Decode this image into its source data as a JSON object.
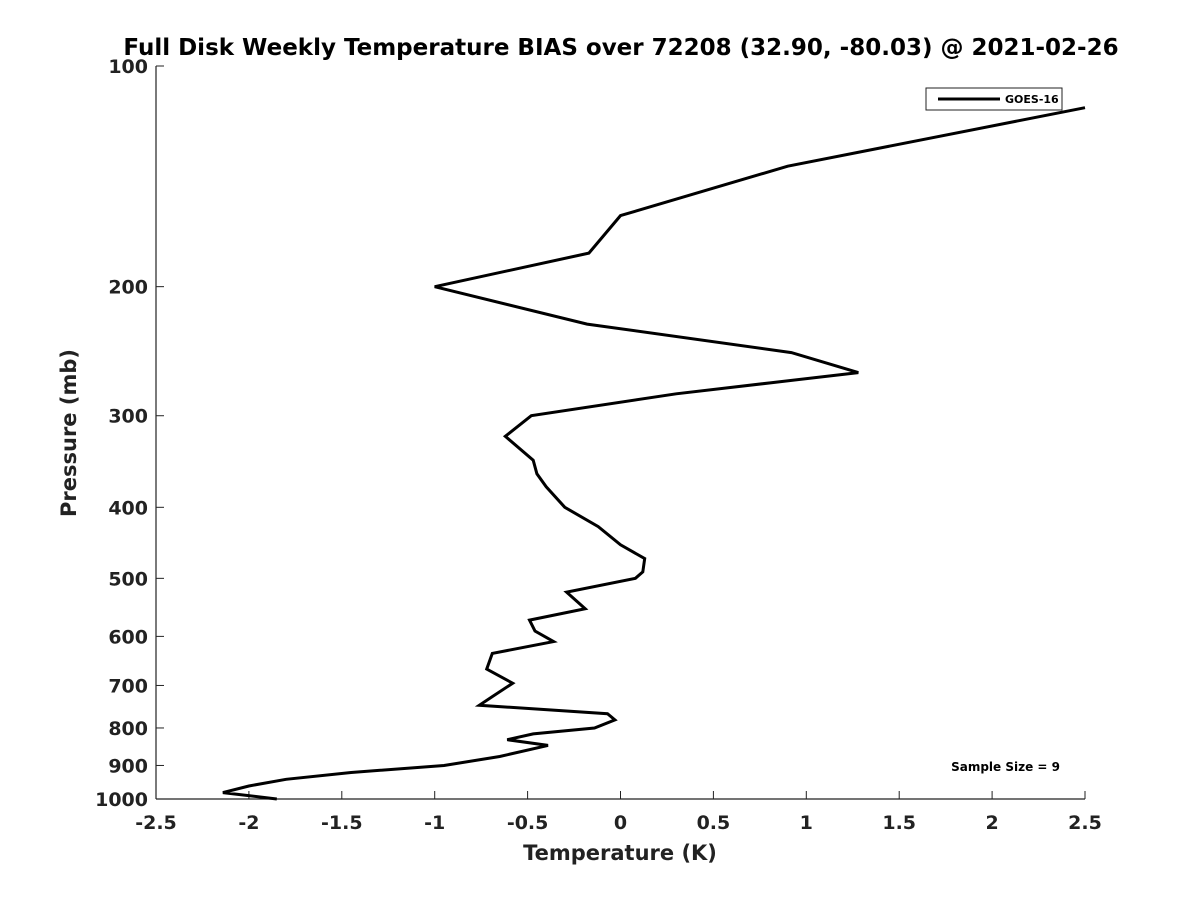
{
  "chart_data": {
    "type": "line",
    "title": "Full Disk Weekly Temperature BIAS over 72208 (32.90, -80.03) @ 2021-02-26",
    "xlabel": "Temperature (K)",
    "ylabel": "Pressure (mb)",
    "xlim": [
      -2.5,
      2.5
    ],
    "ylim": [
      1000,
      100
    ],
    "y_scale": "log",
    "y_direction": "reversed",
    "xticks": [
      -2.5,
      -2,
      -1.5,
      -1,
      -0.5,
      0,
      0.5,
      1,
      1.5,
      2,
      2.5
    ],
    "xtick_labels": [
      "-2.5",
      "-2",
      "-1.5",
      "-1",
      "-0.5",
      "0",
      "0.5",
      "1",
      "1.5",
      "2",
      "2.5"
    ],
    "yticks": [
      100,
      200,
      300,
      400,
      500,
      600,
      700,
      800,
      900,
      1000
    ],
    "ytick_labels": [
      "100",
      "200",
      "300",
      "400",
      "500",
      "600",
      "700",
      "800",
      "900",
      "1000"
    ],
    "grid": false,
    "legend_position": "top-right",
    "annotation": "Sample Size = 9",
    "series": [
      {
        "name": "GOES-16",
        "color": "#000000",
        "points": [
          {
            "t": 2.5,
            "p": 114
          },
          {
            "t": 0.9,
            "p": 137
          },
          {
            "t": 0.0,
            "p": 160
          },
          {
            "t": -0.17,
            "p": 180
          },
          {
            "t": -1.0,
            "p": 200
          },
          {
            "t": -0.18,
            "p": 225
          },
          {
            "t": 0.92,
            "p": 246
          },
          {
            "t": 1.28,
            "p": 262
          },
          {
            "t": 0.3,
            "p": 280
          },
          {
            "t": -0.48,
            "p": 300
          },
          {
            "t": -0.62,
            "p": 320
          },
          {
            "t": -0.47,
            "p": 345
          },
          {
            "t": -0.45,
            "p": 360
          },
          {
            "t": -0.4,
            "p": 375
          },
          {
            "t": -0.3,
            "p": 400
          },
          {
            "t": -0.12,
            "p": 425
          },
          {
            "t": 0.0,
            "p": 450
          },
          {
            "t": 0.13,
            "p": 470
          },
          {
            "t": 0.12,
            "p": 490
          },
          {
            "t": 0.08,
            "p": 500
          },
          {
            "t": -0.29,
            "p": 522
          },
          {
            "t": -0.19,
            "p": 550
          },
          {
            "t": -0.49,
            "p": 570
          },
          {
            "t": -0.46,
            "p": 590
          },
          {
            "t": -0.36,
            "p": 610
          },
          {
            "t": -0.69,
            "p": 633
          },
          {
            "t": -0.72,
            "p": 665
          },
          {
            "t": -0.58,
            "p": 695
          },
          {
            "t": -0.69,
            "p": 725
          },
          {
            "t": -0.76,
            "p": 745
          },
          {
            "t": -0.07,
            "p": 765
          },
          {
            "t": -0.03,
            "p": 780
          },
          {
            "t": -0.14,
            "p": 800
          },
          {
            "t": -0.47,
            "p": 815
          },
          {
            "t": -0.61,
            "p": 830
          },
          {
            "t": -0.39,
            "p": 845
          },
          {
            "t": -0.65,
            "p": 875
          },
          {
            "t": -0.95,
            "p": 900
          },
          {
            "t": -1.45,
            "p": 920
          },
          {
            "t": -1.8,
            "p": 940
          },
          {
            "t": -2.0,
            "p": 960
          },
          {
            "t": -2.14,
            "p": 980
          },
          {
            "t": -1.85,
            "p": 1000
          }
        ]
      }
    ]
  }
}
